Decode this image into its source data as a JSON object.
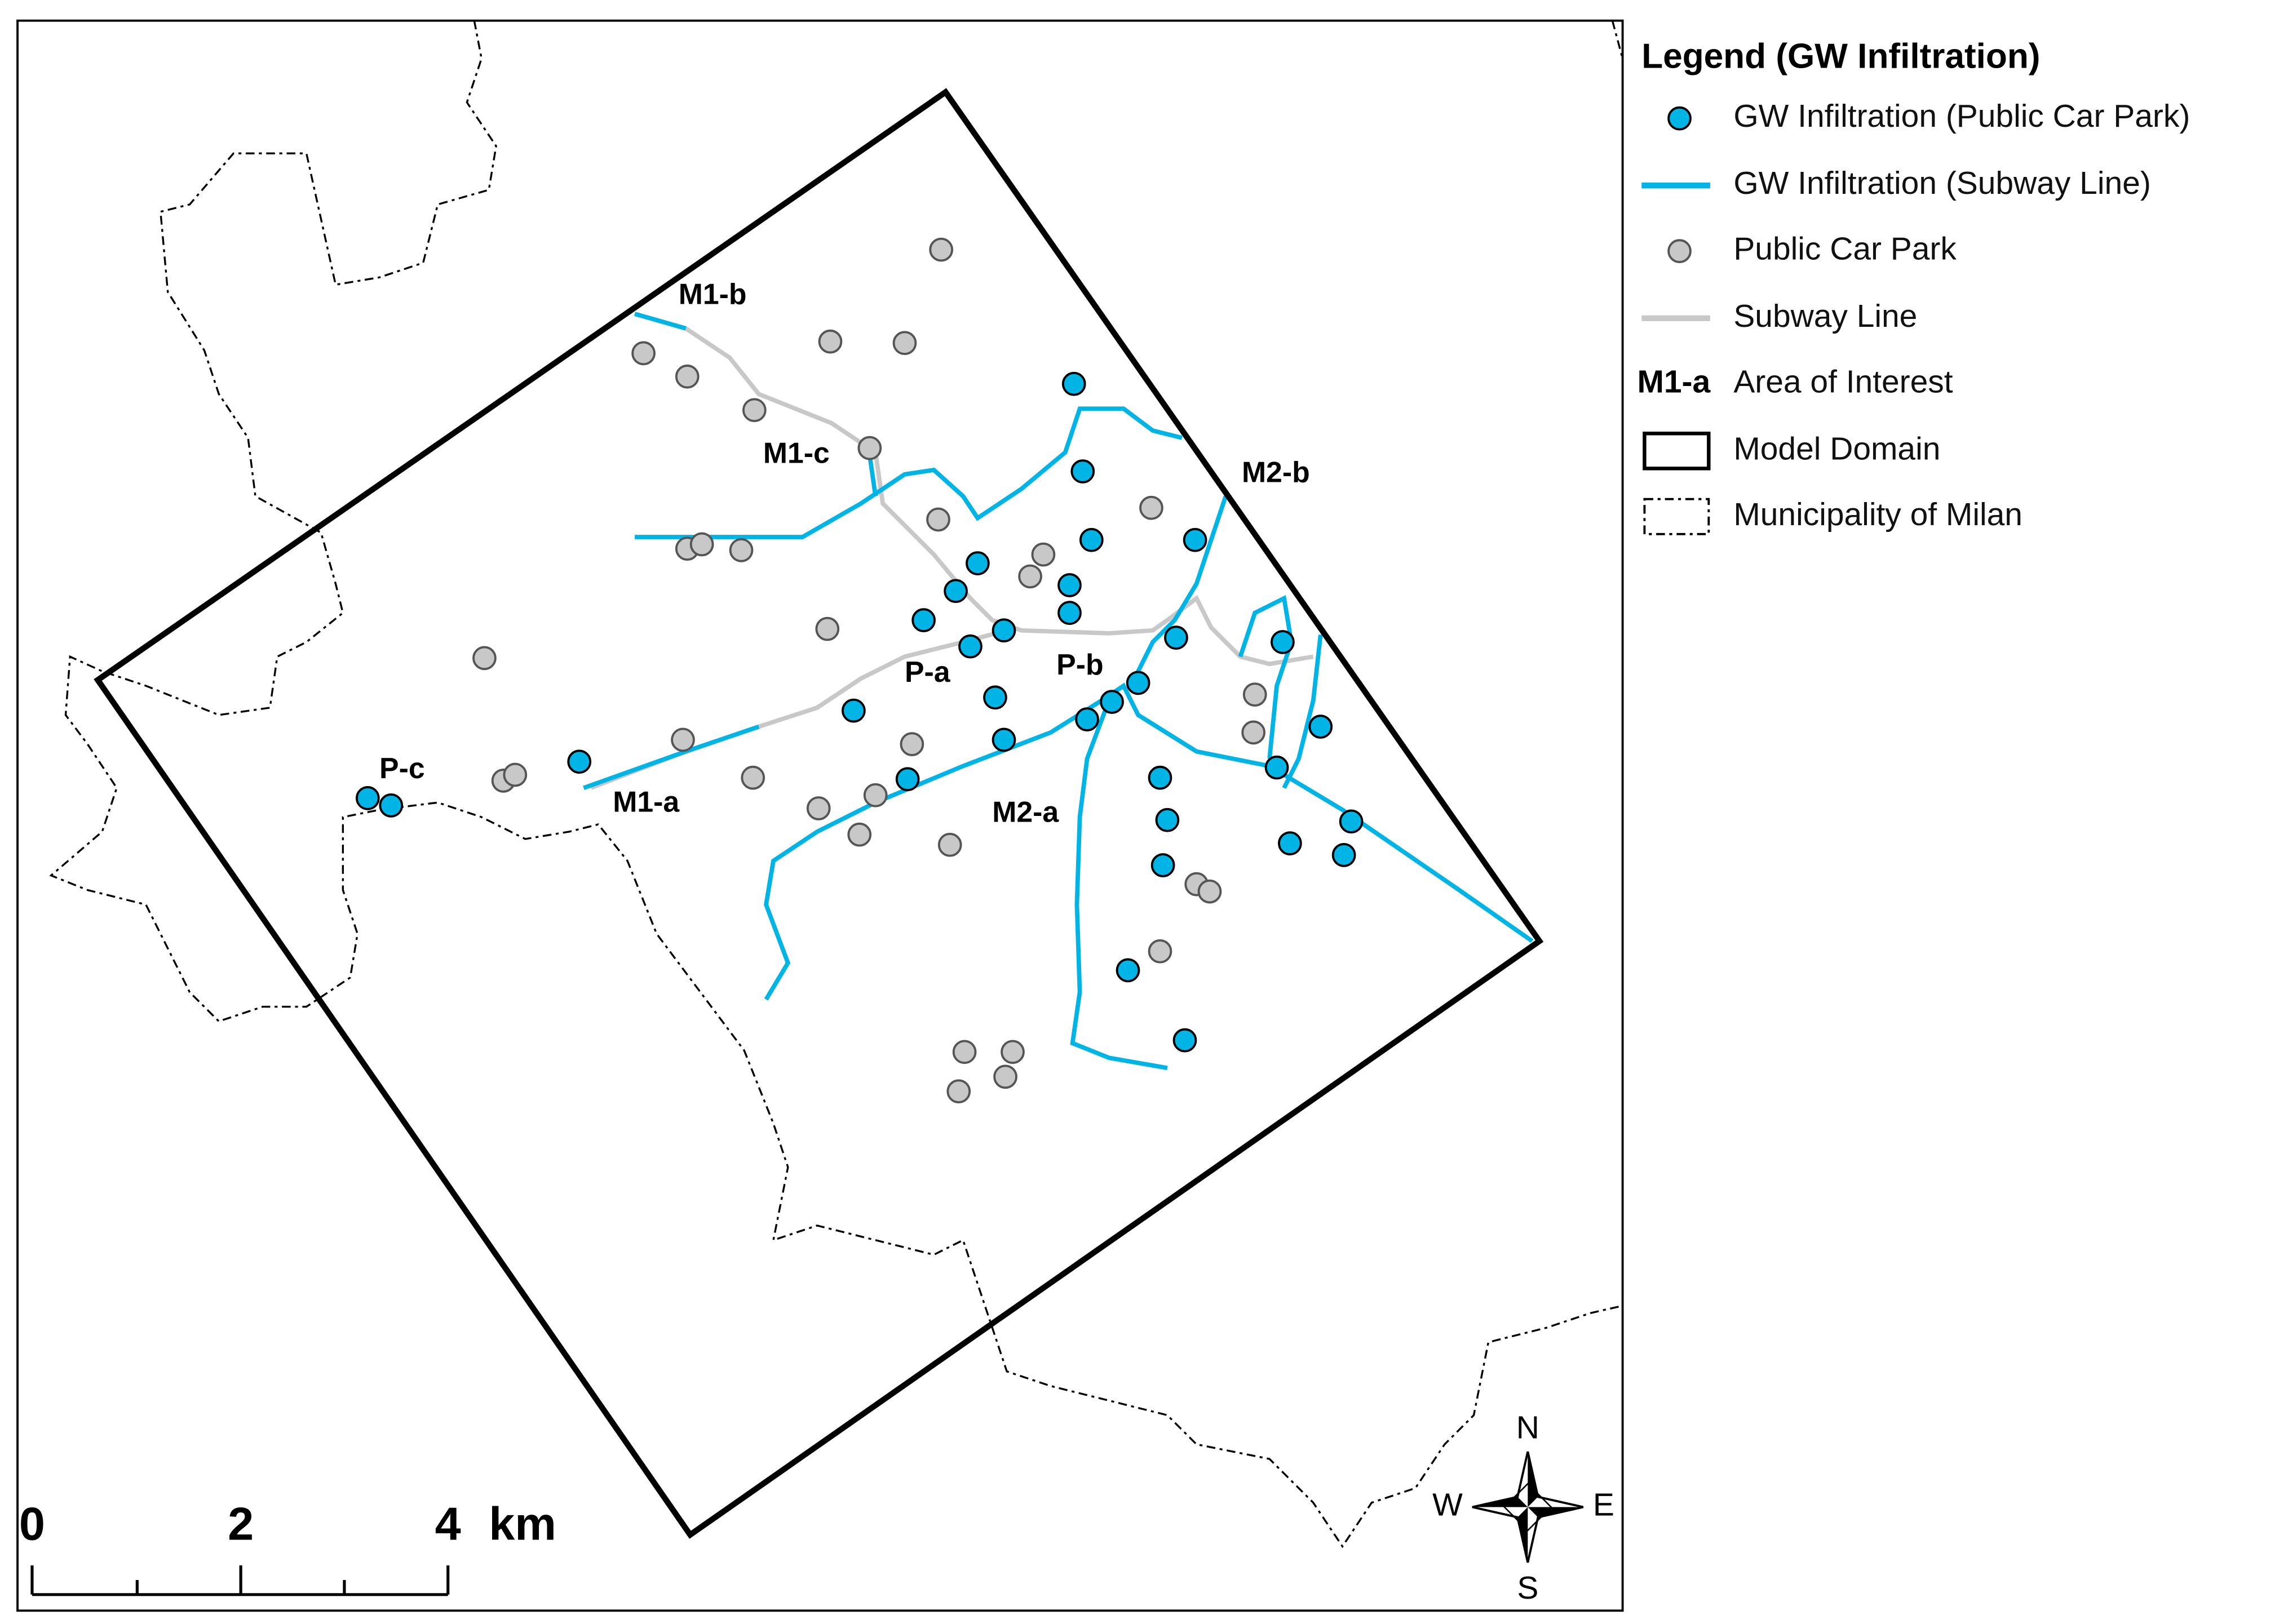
{
  "legend": {
    "title": "Legend (GW Infiltration)",
    "items": [
      {
        "label": "GW Infiltration (Public Car Park)"
      },
      {
        "label": "GW Infiltration (Subway Line)"
      },
      {
        "label": "Public Car Park"
      },
      {
        "label": "Subway Line"
      },
      {
        "symbol_label": "M1-a",
        "label": "Area of Interest"
      },
      {
        "label": "Model Domain"
      },
      {
        "label": "Municipality of Milan"
      }
    ]
  },
  "map": {
    "labels": [
      "M1-b",
      "M1-c",
      "M2-b",
      "P-a",
      "P-b",
      "P-c",
      "M1-a",
      "M2-a"
    ]
  },
  "scale_bar": {
    "ticks": [
      "0",
      "2",
      "4"
    ],
    "unit": "km"
  },
  "compass": {
    "n": "N",
    "e": "E",
    "s": "S",
    "w": "W"
  }
}
